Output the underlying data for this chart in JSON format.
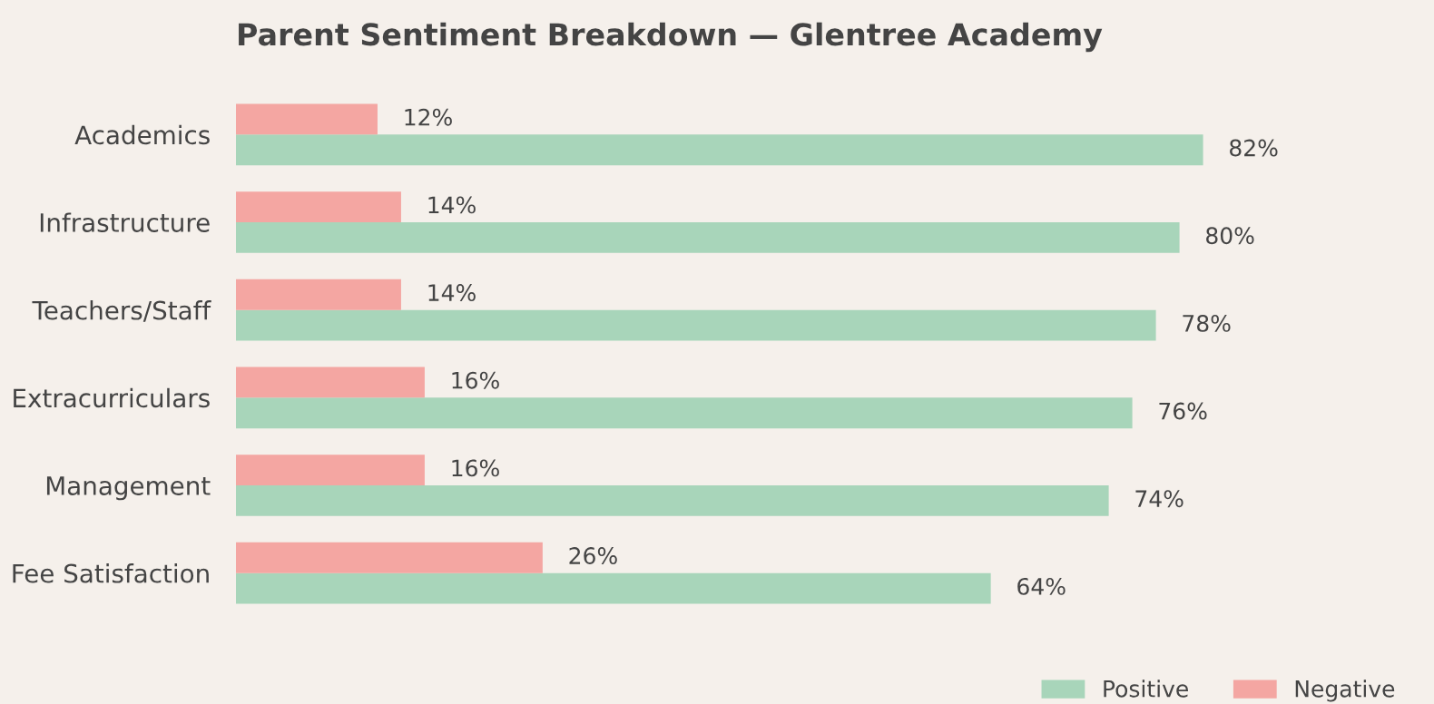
{
  "chart_data": {
    "type": "bar",
    "orientation": "horizontal",
    "title": "Parent Sentiment Breakdown — Glentree Academy",
    "categories": [
      "Academics",
      "Infrastructure",
      "Teachers/Staff",
      "Extracurriculars",
      "Management",
      "Fee Satisfaction"
    ],
    "series": [
      {
        "name": "Positive",
        "color": "#a8d5ba",
        "values": [
          82,
          80,
          78,
          76,
          74,
          64
        ],
        "value_labels": [
          "82%",
          "80%",
          "78%",
          "76%",
          "74%",
          "64%"
        ]
      },
      {
        "name": "Negative",
        "color": "#f4a6a2",
        "values": [
          12,
          14,
          14,
          16,
          16,
          26
        ],
        "value_labels": [
          "12%",
          "14%",
          "14%",
          "16%",
          "16%",
          "26%"
        ]
      }
    ],
    "tick_labels": "y",
    "grid": false,
    "legend": "bottom right"
  }
}
